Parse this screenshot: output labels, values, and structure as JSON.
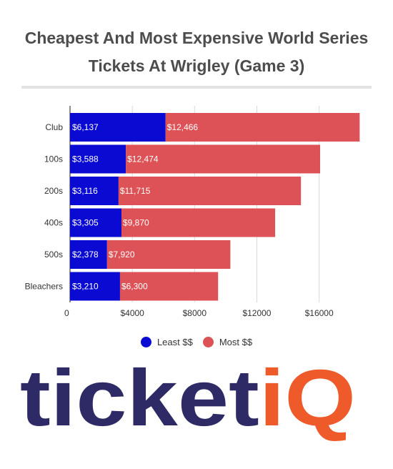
{
  "title_lines": [
    "Cheapest And Most Expensive World Series",
    "Tickets At Wrigley (Game 3)"
  ],
  "colors": {
    "least": "#0a0ad2",
    "most": "#dd5256",
    "grid": "#d9d9d9",
    "logo_blue": "#2e2a66",
    "logo_orange": "#ef5a2b"
  },
  "chart_data": {
    "type": "bar",
    "orientation": "horizontal",
    "stacked": true,
    "categories": [
      "Club",
      "100s",
      "200s",
      "400s",
      "500s",
      "Bleachers"
    ],
    "series": [
      {
        "name": "Least $$",
        "values": [
          6137,
          3588,
          3116,
          3305,
          2378,
          3210
        ],
        "labels": [
          "$6,137",
          "$3,588",
          "$3,116",
          "$3,305",
          "$2,378",
          "$3,210"
        ]
      },
      {
        "name": "Most $$",
        "values": [
          12466,
          12474,
          11715,
          9870,
          7920,
          6300
        ],
        "labels": [
          "$12,466",
          "$12,474",
          "$11,715",
          "$9,870",
          "$7,920",
          "$6,300"
        ]
      }
    ],
    "x_ticks": [
      {
        "value": 0,
        "label": "0"
      },
      {
        "value": 4000,
        "label": "$4000"
      },
      {
        "value": 8000,
        "label": "$8000"
      },
      {
        "value": 12000,
        "label": "$12000"
      },
      {
        "value": 16000,
        "label": "$16000"
      }
    ],
    "xlim": [
      0,
      19000
    ],
    "grid": true,
    "legend_position": "bottom"
  },
  "logo": {
    "text_main": "ticket",
    "text_accent": "iQ"
  }
}
